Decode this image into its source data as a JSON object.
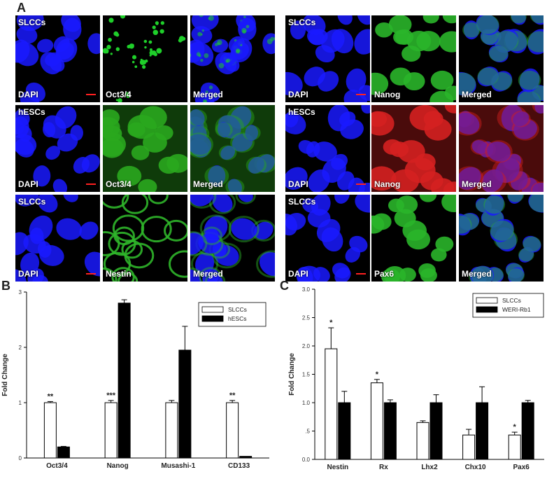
{
  "figure": {
    "panel_a_letter": "A",
    "panel_b_letter": "B",
    "panel_c_letter": "C",
    "grid_left": [
      {
        "group": "SLCCs",
        "c1": "DAPI",
        "c2": "Oct3/4",
        "c3": "Merged",
        "stain_color": "#1fcf2a",
        "pattern": "dots"
      },
      {
        "group": "hESCs",
        "c1": "DAPI",
        "c2": "Oct3/4",
        "c3": "Merged",
        "stain_color": "#2aa81e",
        "pattern": "diffuse"
      },
      {
        "group": "SLCCs",
        "c1": "DAPI",
        "c2": "Nestin",
        "c3": "Merged",
        "stain_color": "#2fb52a",
        "pattern": "rings"
      }
    ],
    "grid_right": [
      {
        "group": "SLCCs",
        "c1": "DAPI",
        "c2": "Nanog",
        "c3": "Merged",
        "stain_color": "#2ab52a",
        "pattern": "nuclear"
      },
      {
        "group": "hESCs",
        "c1": "DAPI",
        "c2": "Nanog",
        "c3": "Merged",
        "stain_color": "#d42020",
        "pattern": "diffuse"
      },
      {
        "group": "SLCCs",
        "c1": "DAPI",
        "c2": "Pax6",
        "c3": "Merged",
        "stain_color": "#2ab52a",
        "pattern": "nuclear"
      }
    ],
    "dapi_color": "#1a1aff"
  },
  "chart_data": [
    {
      "type": "bar",
      "categories": [
        "Oct3/4",
        "Nanog",
        "Musashi-1",
        "CD133"
      ],
      "series": [
        {
          "name": "SLCCs",
          "values": [
            1.0,
            1.0,
            1.0,
            1.0
          ],
          "errors": [
            0.02,
            0.04,
            0.04,
            0.04
          ],
          "fill": "#ffffff"
        },
        {
          "name": "hESCs",
          "values": [
            0.2,
            2.8,
            1.95,
            0.03
          ],
          "errors": [
            0.01,
            0.06,
            0.43,
            0.0
          ],
          "fill": "#000000"
        }
      ],
      "significance": [
        "**",
        "***",
        "",
        "**"
      ],
      "ylabel": "Fold Change",
      "ylim": [
        0,
        3
      ],
      "yticks": [
        "0",
        "1",
        "2",
        "3"
      ],
      "legend": "top-right"
    },
    {
      "type": "bar",
      "categories": [
        "Nestin",
        "Rx",
        "Lhx2",
        "Chx10",
        "Pax6"
      ],
      "series": [
        {
          "name": "SLCCs",
          "values": [
            1.95,
            1.35,
            0.65,
            0.43,
            0.43
          ],
          "errors": [
            0.37,
            0.06,
            0.03,
            0.1,
            0.05
          ],
          "fill": "#ffffff"
        },
        {
          "name": "WERI-Rb1",
          "values": [
            1.0,
            1.0,
            1.0,
            1.0,
            1.0
          ],
          "errors": [
            0.2,
            0.05,
            0.14,
            0.28,
            0.04
          ],
          "fill": "#000000"
        }
      ],
      "significance": [
        "*",
        "*",
        "",
        "",
        "*"
      ],
      "ylabel": "Fold Change",
      "ylim": [
        0,
        3
      ],
      "yticks": [
        "0.0",
        ".5",
        "1.0",
        "1.5",
        "2.0",
        "2.5",
        "3.0"
      ],
      "legend": "top-right"
    }
  ]
}
